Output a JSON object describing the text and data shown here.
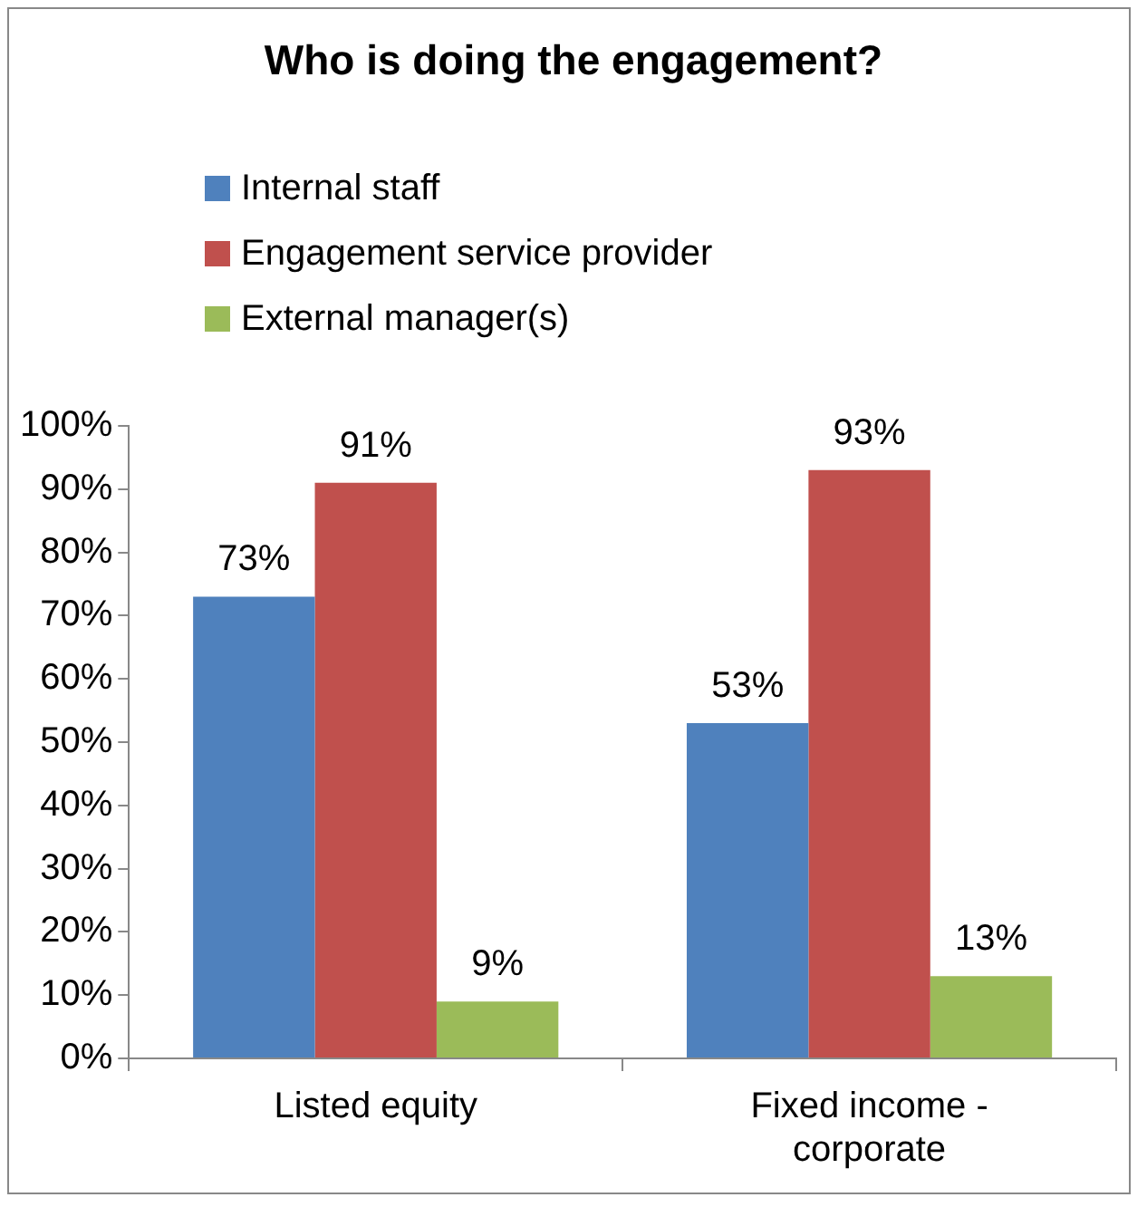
{
  "chart_data": {
    "type": "bar",
    "title": "Who is doing the engagement?",
    "categories": [
      "Listed equity",
      "Fixed income - corporate"
    ],
    "series": [
      {
        "name": "Internal staff",
        "color": "#4f81bd",
        "values": [
          73,
          53
        ],
        "value_labels": [
          "73%",
          "53%"
        ]
      },
      {
        "name": "Engagement service provider",
        "color": "#c0504d",
        "values": [
          91,
          93
        ],
        "value_labels": [
          "91%",
          "93%"
        ]
      },
      {
        "name": "External manager(s)",
        "color": "#9bbb59",
        "values": [
          9,
          13
        ],
        "value_labels": [
          "9%",
          "13%"
        ]
      }
    ],
    "ylim": [
      0,
      100
    ],
    "yticks": [
      {
        "value": 0,
        "label": "0%"
      },
      {
        "value": 10,
        "label": "10%"
      },
      {
        "value": 20,
        "label": "20%"
      },
      {
        "value": 30,
        "label": "30%"
      },
      {
        "value": 40,
        "label": "40%"
      },
      {
        "value": 50,
        "label": "50%"
      },
      {
        "value": 60,
        "label": "60%"
      },
      {
        "value": 70,
        "label": "70%"
      },
      {
        "value": 80,
        "label": "80%"
      },
      {
        "value": 90,
        "label": "90%"
      },
      {
        "value": 100,
        "label": "100%"
      }
    ],
    "legend": "top left"
  }
}
